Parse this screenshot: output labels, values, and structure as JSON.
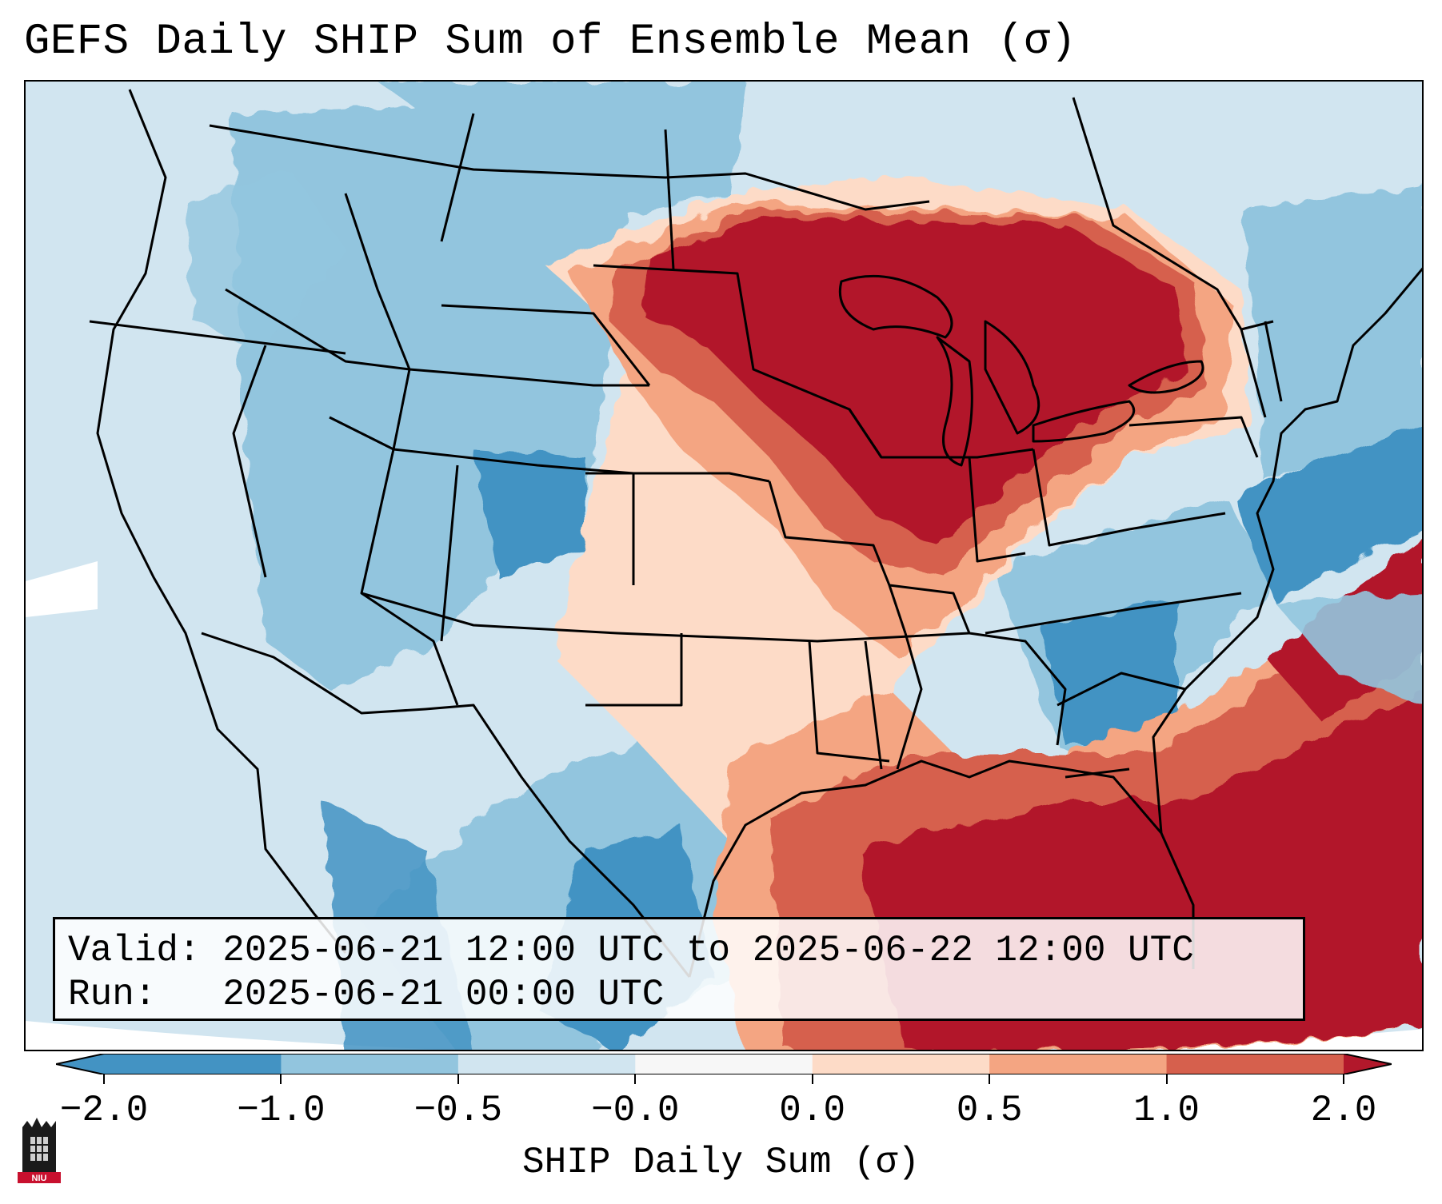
{
  "title": "GEFS Daily SHIP Sum of Ensemble Mean (σ)",
  "info": {
    "valid_label": "Valid:",
    "valid_value": "2025-06-21 12:00 UTC to 2025-06-22 12:00 UTC",
    "run_label": "Run:",
    "run_value": "2025-06-21 00:00 UTC"
  },
  "colorbar": {
    "label": "SHIP Daily Sum (σ)",
    "ticks": [
      "−2.0",
      "−1.0",
      "−0.5",
      "−0.0",
      "0.0",
      "0.5",
      "1.0",
      "2.0"
    ],
    "colors": [
      "#4393c3",
      "#92c5de",
      "#d1e5f0",
      "#f7f7f7",
      "#fddbc7",
      "#f4a582",
      "#d6604d",
      "#b2182b"
    ]
  },
  "logo": {
    "text": "NIU",
    "icon": "niu-tower-logo"
  },
  "map": {
    "region": "Contiguous United States",
    "field": "SHIP daily sum anomaly",
    "pattern": "Strong positive anomalies over Upper Midwest, Great Lakes and northern Plains, Gulf of Mexico and western Atlantic; negative anomalies over the West, Southern Plains, Southeast and northeast coast"
  }
}
